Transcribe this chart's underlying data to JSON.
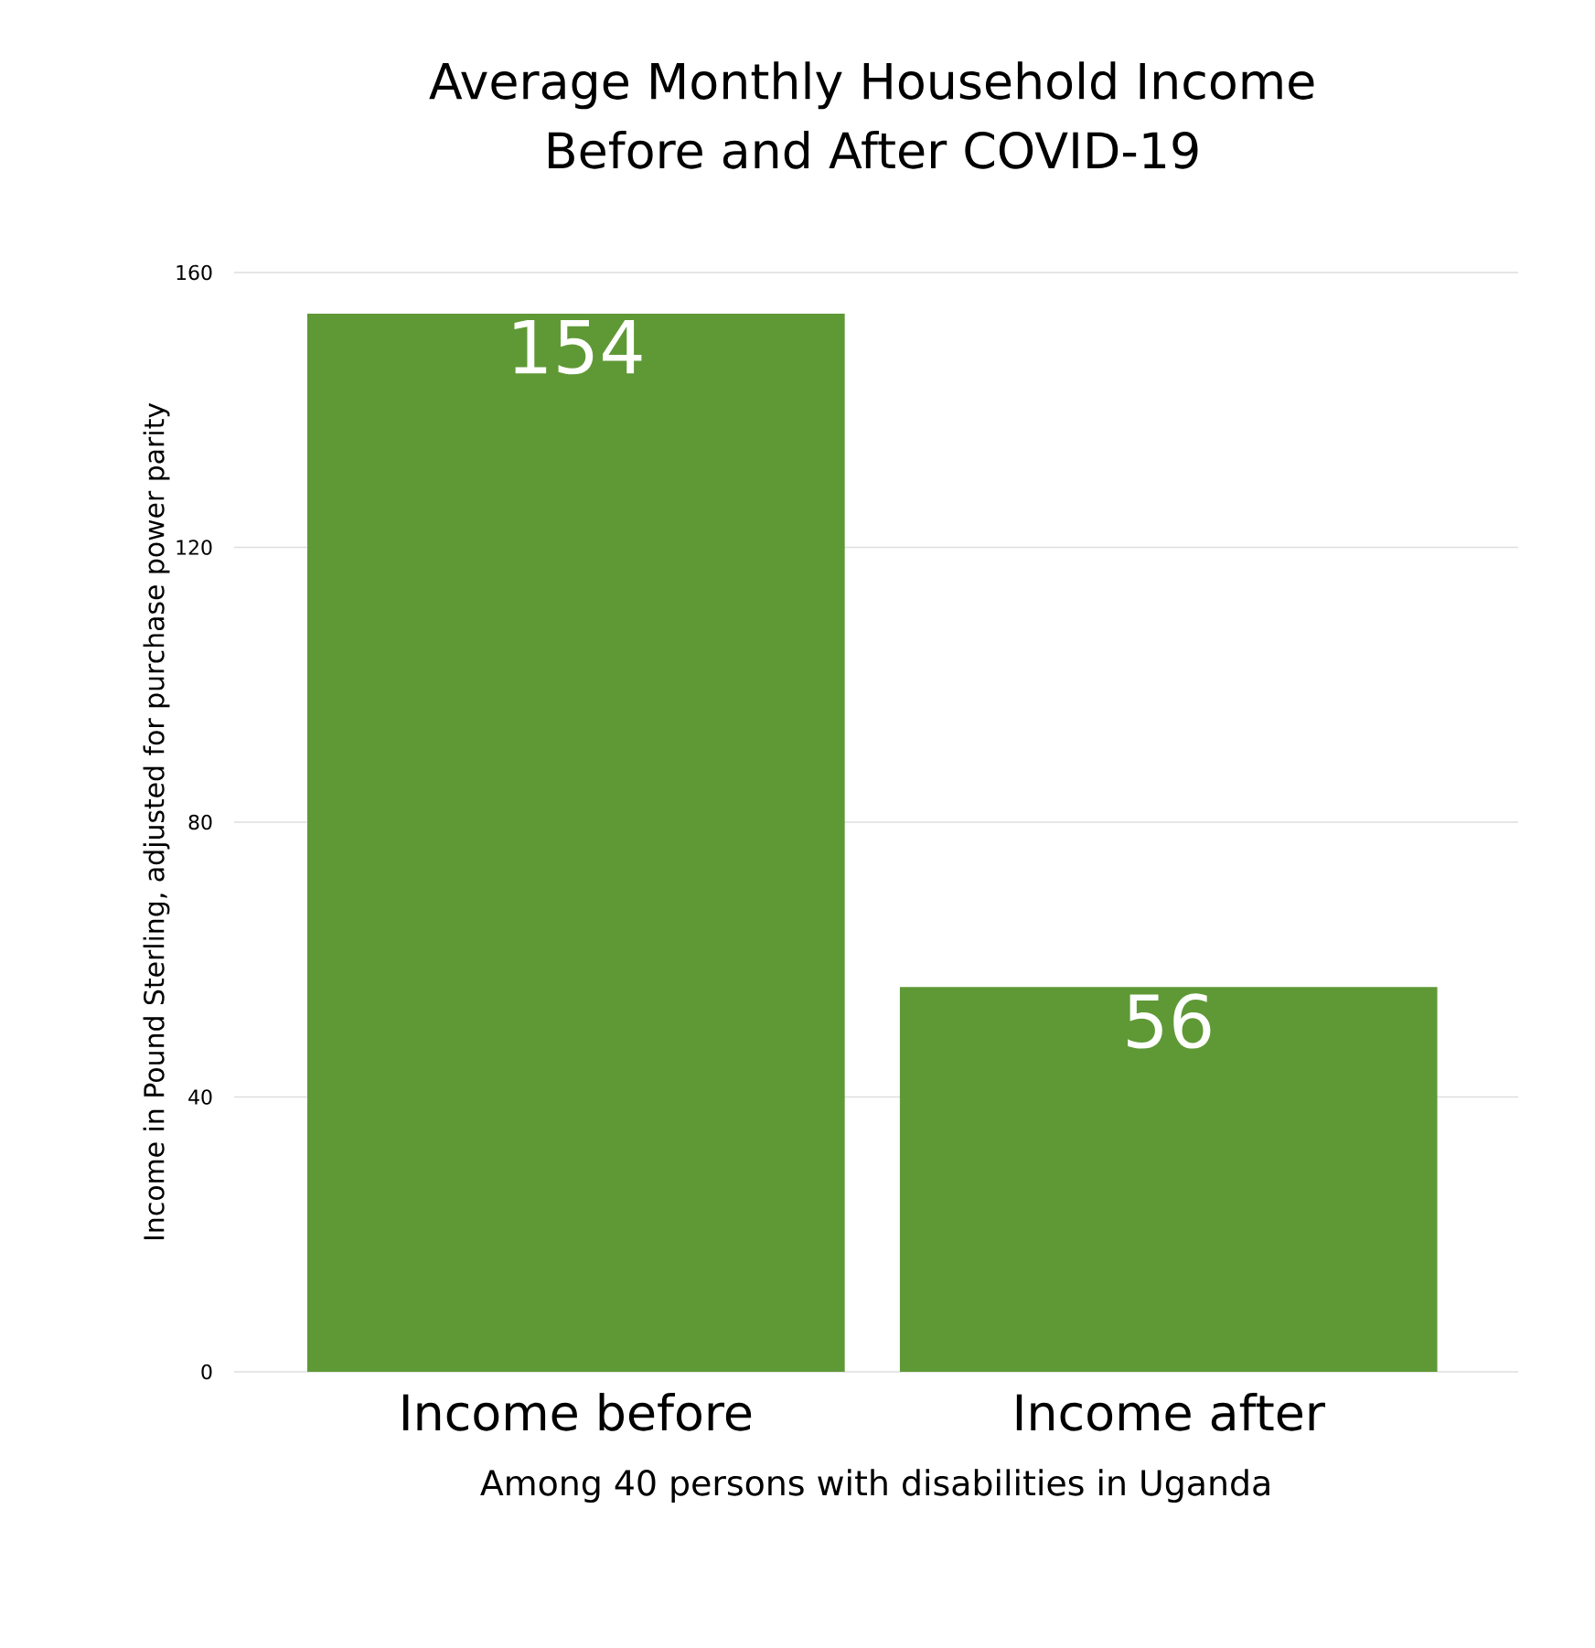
{
  "chart_data": {
    "type": "bar",
    "title": "Average Monthly Household Income\nBefore and After COVID-19",
    "xlabel": "Among 40 persons with disabilities in Uganda",
    "ylabel": "Income in Pound Sterling, adjusted for purchase power parity",
    "categories": [
      "Income before",
      "Income after"
    ],
    "values": [
      154,
      56
    ],
    "color": "#5f9936",
    "ylim": [
      0,
      160
    ],
    "yticks": [
      0,
      40,
      80,
      120,
      160
    ],
    "grid": "y",
    "data_labels": true
  }
}
